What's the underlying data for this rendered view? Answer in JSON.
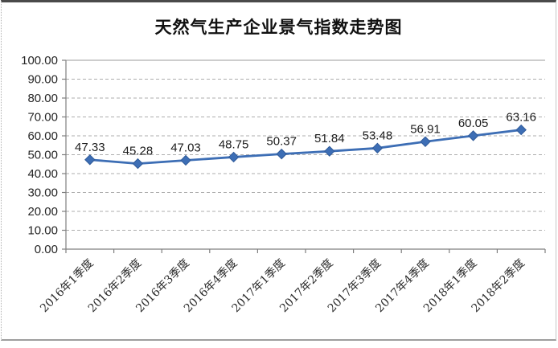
{
  "chart_data": {
    "type": "line",
    "title": "天然气生产企业景气指数走势图",
    "categories": [
      "2016年1季度",
      "2016年2季度",
      "2016年3季度",
      "2016年4季度",
      "2017年1季度",
      "2017年2季度",
      "2017年3季度",
      "2017年4季度",
      "2018年1季度",
      "2018年2季度"
    ],
    "values": [
      47.33,
      45.28,
      47.03,
      48.75,
      50.37,
      51.84,
      53.48,
      56.91,
      60.05,
      63.16
    ],
    "data_labels": [
      "47.33",
      "45.28",
      "47.03",
      "48.75",
      "50.37",
      "51.84",
      "53.48",
      "56.91",
      "60.05",
      "63.16"
    ],
    "xlabel": "",
    "ylabel": "",
    "ylim": [
      0,
      100
    ],
    "ytick_step": 10,
    "ytick_labels": [
      "0.00",
      "10.00",
      "20.00",
      "30.00",
      "40.00",
      "50.00",
      "60.00",
      "70.00",
      "80.00",
      "90.00",
      "100.00"
    ],
    "grid": true,
    "legend": "none",
    "marker": "diamond",
    "x_label_rotation_deg": -45
  },
  "colors": {
    "line": "#3D6EB5",
    "marker_fill": "#3D6EB5",
    "marker_edge": "#2F5A99",
    "gridline": "#adadad",
    "top_gridline": "#9b9b9b",
    "axis": "#7f7f7f",
    "tick_text": "#262626",
    "data_label_text": "#1c1c1c",
    "title_text": "#111111",
    "frame": "#9e9e9e",
    "background": "#ffffff"
  }
}
